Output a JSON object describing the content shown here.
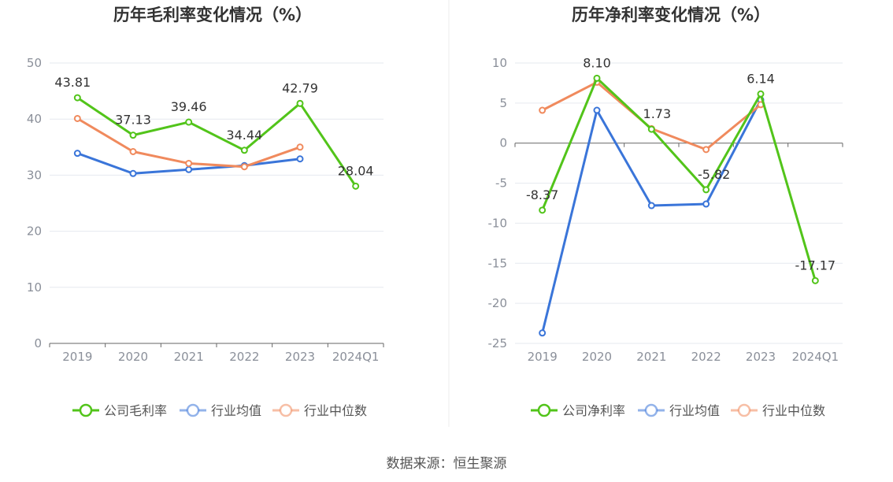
{
  "source": "数据来源：恒生聚源",
  "chart_data": [
    {
      "type": "line",
      "title": "历年毛利率变化情况（%）",
      "categories": [
        "2019",
        "2020",
        "2021",
        "2022",
        "2023",
        "2024Q1"
      ],
      "ylim": [
        0,
        50
      ],
      "yticks": [
        0,
        10,
        20,
        30,
        40,
        50
      ],
      "grid": true,
      "legend_position": "bottom",
      "series": [
        {
          "name": "公司毛利率",
          "color": "#52c41a",
          "labeled": true,
          "values": [
            43.81,
            37.13,
            39.46,
            34.44,
            42.79,
            28.04
          ],
          "labels": [
            "43.81",
            "37.13",
            "39.46",
            "34.44",
            "42.79",
            "28.04"
          ]
        },
        {
          "name": "行业均值",
          "color": "#3a75d9",
          "labeled": false,
          "values": [
            33.9,
            30.3,
            31.0,
            31.7,
            32.9,
            null
          ]
        },
        {
          "name": "行业中位数",
          "color": "#f08a5d",
          "labeled": false,
          "values": [
            40.1,
            34.2,
            32.1,
            31.5,
            35.0,
            null
          ]
        }
      ]
    },
    {
      "type": "line",
      "title": "历年净利率变化情况（%）",
      "categories": [
        "2019",
        "2020",
        "2021",
        "2022",
        "2023",
        "2024Q1"
      ],
      "ylim": [
        -25,
        10
      ],
      "yticks": [
        -25,
        -20,
        -15,
        -10,
        -5,
        0,
        5,
        10
      ],
      "grid": true,
      "legend_position": "bottom",
      "series": [
        {
          "name": "公司净利率",
          "color": "#52c41a",
          "labeled": true,
          "values": [
            -8.37,
            8.1,
            1.73,
            -5.82,
            6.14,
            -17.17
          ],
          "labels": [
            "-8.37",
            "8.10",
            "1.73",
            "-5.82",
            "6.14",
            "-17.17"
          ]
        },
        {
          "name": "行业均值",
          "color": "#3a75d9",
          "labeled": false,
          "values": [
            -23.7,
            4.1,
            -7.8,
            -7.6,
            5.4,
            null
          ]
        },
        {
          "name": "行业中位数",
          "color": "#f08a5d",
          "labeled": false,
          "values": [
            4.1,
            7.6,
            1.8,
            -0.8,
            4.8,
            null
          ]
        }
      ]
    }
  ]
}
